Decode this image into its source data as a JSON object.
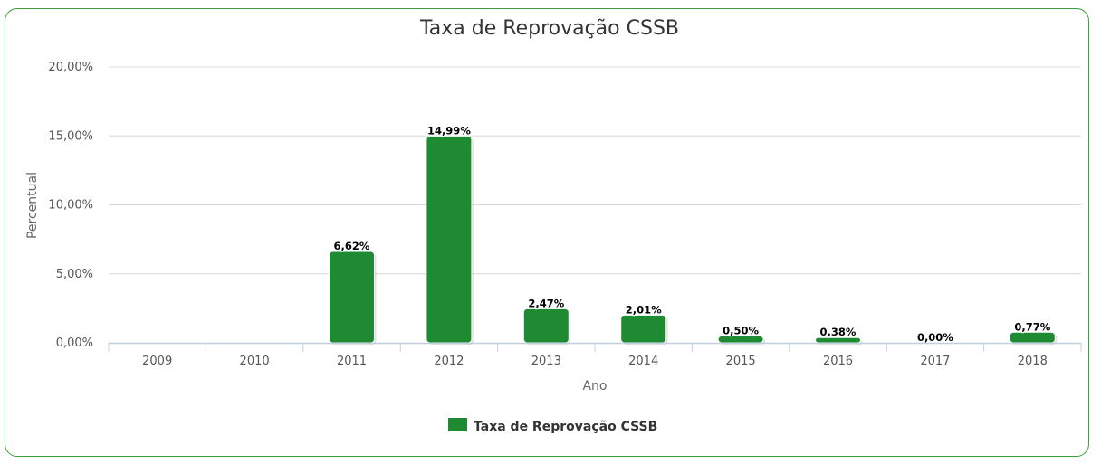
{
  "chart_data": {
    "type": "bar",
    "title": "Taxa de Reprovação CSSB",
    "xlabel": "Ano",
    "ylabel": "Percentual",
    "categories": [
      "2009",
      "2010",
      "2011",
      "2012",
      "2013",
      "2014",
      "2015",
      "2016",
      "2017",
      "2018"
    ],
    "series": [
      {
        "name": "Taxa de Reprovação CSSB",
        "values": [
          null,
          null,
          6.62,
          14.99,
          2.47,
          2.01,
          0.5,
          0.38,
          0.0,
          0.77
        ],
        "data_labels": [
          "",
          "",
          "6,62%",
          "14,99%",
          "2,47%",
          "2,01%",
          "0,50%",
          "0,38%",
          "0,00%",
          "0,77%"
        ],
        "color": "#1e8b32"
      }
    ],
    "ylim": [
      0,
      20
    ],
    "yticks": [
      0,
      5,
      10,
      15,
      20
    ],
    "ytick_labels": [
      "0,00%",
      "5,00%",
      "10,00%",
      "15,00%",
      "20,00%"
    ],
    "grid": true,
    "legend_position": "bottom-center"
  },
  "colors": {
    "frame_border": "#3aa13a",
    "bar": "#1e8b32",
    "grid": "#d8d8d8",
    "axis": "#c0d0e0"
  }
}
